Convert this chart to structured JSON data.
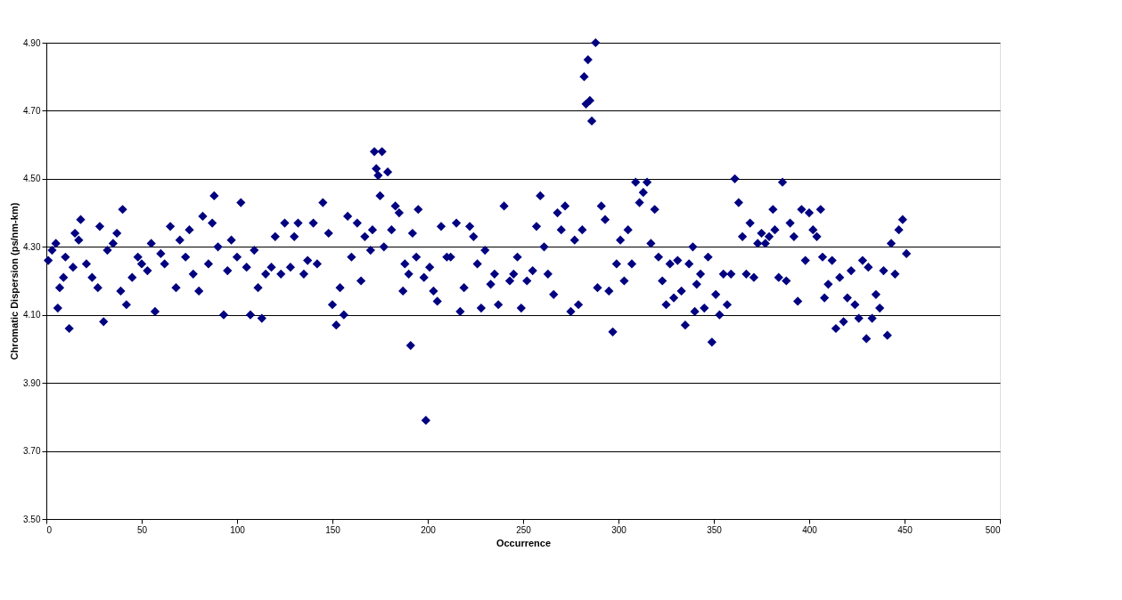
{
  "chart_data": {
    "type": "scatter",
    "xlabel": "Occurrence",
    "ylabel": "Chromatic Dispersion (ps/nm-km)",
    "xlim": [
      0,
      500
    ],
    "xticks": [
      0,
      50,
      100,
      150,
      200,
      250,
      300,
      350,
      400,
      450,
      500
    ],
    "ylim": [
      3.5,
      4.9
    ],
    "yticks": [
      {
        "value": 3.5,
        "label": "3.50"
      },
      {
        "value": 3.7,
        "label": "3.70"
      },
      {
        "value": 3.9,
        "label": "3.90"
      },
      {
        "value": 4.1,
        "label": "4.10"
      },
      {
        "value": 4.3,
        "label": "4.30"
      },
      {
        "value": 4.5,
        "label": "4.50"
      },
      {
        "value": 4.7,
        "label": "4.70"
      },
      {
        "value": 4.9,
        "label": "4.90"
      }
    ],
    "grid": "y",
    "marker": "diamond",
    "series": [
      {
        "color": "#000080",
        "x": [
          1,
          3,
          5,
          6,
          7,
          9,
          10,
          12,
          14,
          15,
          17,
          18,
          21,
          24,
          27,
          28,
          30,
          32,
          35,
          37,
          39,
          40,
          42,
          45,
          48,
          50,
          53,
          55,
          57,
          60,
          62,
          65,
          68,
          70,
          73,
          75,
          77,
          80,
          82,
          85,
          87,
          88,
          90,
          93,
          95,
          97,
          100,
          102,
          105,
          107,
          109,
          111,
          113,
          115,
          118,
          120,
          123,
          125,
          128,
          130,
          132,
          135,
          137,
          140,
          142,
          145,
          148,
          150,
          152,
          154,
          156,
          158,
          160,
          163,
          165,
          167,
          170,
          171,
          172,
          173,
          174,
          175,
          176,
          177,
          179,
          181,
          183,
          185,
          187,
          188,
          190,
          191,
          192,
          194,
          195,
          198,
          199,
          201,
          203,
          205,
          207,
          210,
          212,
          215,
          217,
          219,
          222,
          224,
          226,
          228,
          230,
          233,
          235,
          237,
          240,
          243,
          245,
          247,
          249,
          252,
          255,
          257,
          259,
          261,
          263,
          266,
          268,
          270,
          272,
          275,
          277,
          279,
          281,
          282,
          283,
          284,
          285,
          286,
          288,
          289,
          291,
          293,
          295,
          297,
          299,
          301,
          303,
          305,
          307,
          309,
          311,
          313,
          315,
          317,
          319,
          321,
          323,
          325,
          327,
          329,
          331,
          333,
          335,
          337,
          339,
          340,
          341,
          343,
          345,
          347,
          349,
          351,
          353,
          355,
          357,
          359,
          361,
          363,
          365,
          367,
          369,
          371,
          373,
          375,
          377,
          379,
          381,
          382,
          384,
          386,
          388,
          390,
          392,
          394,
          396,
          398,
          400,
          402,
          404,
          406,
          407,
          408,
          410,
          412,
          414,
          416,
          418,
          420,
          422,
          424,
          426,
          428,
          430,
          431,
          433,
          435,
          437,
          439,
          441,
          443,
          445,
          447,
          449,
          451
        ],
        "values": [
          4.26,
          4.29,
          4.31,
          4.12,
          4.18,
          4.21,
          4.27,
          4.06,
          4.24,
          4.34,
          4.32,
          4.38,
          4.25,
          4.21,
          4.18,
          4.36,
          4.08,
          4.29,
          4.31,
          4.34,
          4.17,
          4.41,
          4.13,
          4.21,
          4.27,
          4.25,
          4.23,
          4.31,
          4.11,
          4.28,
          4.25,
          4.36,
          4.18,
          4.32,
          4.27,
          4.35,
          4.22,
          4.17,
          4.39,
          4.25,
          4.37,
          4.45,
          4.3,
          4.1,
          4.23,
          4.32,
          4.27,
          4.43,
          4.24,
          4.1,
          4.29,
          4.18,
          4.09,
          4.22,
          4.24,
          4.33,
          4.22,
          4.37,
          4.24,
          4.33,
          4.37,
          4.22,
          4.26,
          4.37,
          4.25,
          4.43,
          4.34,
          4.13,
          4.07,
          4.18,
          4.1,
          4.39,
          4.27,
          4.37,
          4.2,
          4.33,
          4.29,
          4.35,
          4.58,
          4.53,
          4.51,
          4.45,
          4.58,
          4.3,
          4.52,
          4.35,
          4.42,
          4.4,
          4.17,
          4.25,
          4.22,
          4.01,
          4.34,
          4.27,
          4.41,
          4.21,
          3.79,
          4.24,
          4.17,
          4.14,
          4.36,
          4.27,
          4.27,
          4.37,
          4.11,
          4.18,
          4.36,
          4.33,
          4.25,
          4.12,
          4.29,
          4.19,
          4.22,
          4.13,
          4.42,
          4.2,
          4.22,
          4.27,
          4.12,
          4.2,
          4.23,
          4.36,
          4.45,
          4.3,
          4.22,
          4.16,
          4.4,
          4.35,
          4.42,
          4.11,
          4.32,
          4.13,
          4.35,
          4.8,
          4.72,
          4.85,
          4.73,
          4.67,
          4.9,
          4.18,
          4.42,
          4.38,
          4.17,
          4.05,
          4.25,
          4.32,
          4.2,
          4.35,
          4.25,
          4.49,
          4.43,
          4.46,
          4.49,
          4.31,
          4.41,
          4.27,
          4.2,
          4.13,
          4.25,
          4.15,
          4.26,
          4.17,
          4.07,
          4.25,
          4.3,
          4.11,
          4.19,
          4.22,
          4.12,
          4.27,
          4.02,
          4.16,
          4.1,
          4.22,
          4.13,
          4.22,
          4.5,
          4.43,
          4.33,
          4.22,
          4.37,
          4.21,
          4.31,
          4.34,
          4.31,
          4.33,
          4.41,
          4.35,
          4.21,
          4.49,
          4.2,
          4.37,
          4.33,
          4.14,
          4.41,
          4.26,
          4.4,
          4.35,
          4.33,
          4.41,
          4.27,
          4.15,
          4.19,
          4.26,
          4.06,
          4.21,
          4.08,
          4.15,
          4.23,
          4.13,
          4.09,
          4.26,
          4.03,
          4.24,
          4.09,
          4.16,
          4.12,
          4.23,
          4.04,
          4.31,
          4.22,
          4.35,
          4.38,
          4.28
        ]
      }
    ]
  }
}
